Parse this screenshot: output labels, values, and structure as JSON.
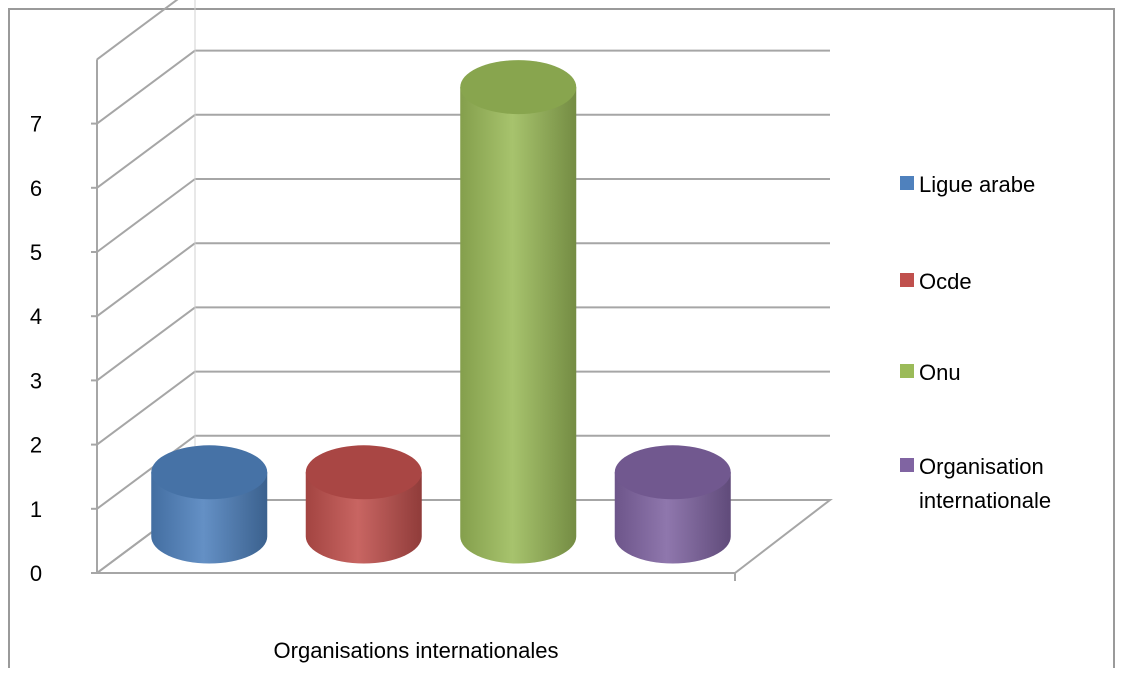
{
  "chart_data": {
    "type": "bar",
    "style": "3d-cylinder",
    "categories": [
      "Organisations internationales"
    ],
    "series": [
      {
        "name": "Ligue arabe",
        "values": [
          1
        ],
        "color": "#4f81bd"
      },
      {
        "name": "Ocde",
        "values": [
          1
        ],
        "color": "#c0504d"
      },
      {
        "name": "Onu",
        "values": [
          7
        ],
        "color": "#9bbb59"
      },
      {
        "name": "Organisation internationale",
        "values": [
          1
        ],
        "color": "#8064a2"
      }
    ],
    "ylim": [
      0,
      7
    ],
    "yticks": [
      "0",
      "1",
      "2",
      "3",
      "4",
      "5",
      "6",
      "7"
    ],
    "grid": true,
    "legend_position": "right",
    "xlabel": "",
    "ylabel": "",
    "title": ""
  },
  "legend": {
    "items": [
      {
        "label_lines": [
          "Ligue arabe"
        ],
        "color": "#4f81bd"
      },
      {
        "label_lines": [
          "Ocde"
        ],
        "color": "#c0504d"
      },
      {
        "label_lines": [
          "Onu"
        ],
        "color": "#9bbb59"
      },
      {
        "label_lines": [
          "Organisation",
          "internationale"
        ],
        "color": "#8064a2"
      }
    ]
  },
  "category_label": "Organisations internationales"
}
